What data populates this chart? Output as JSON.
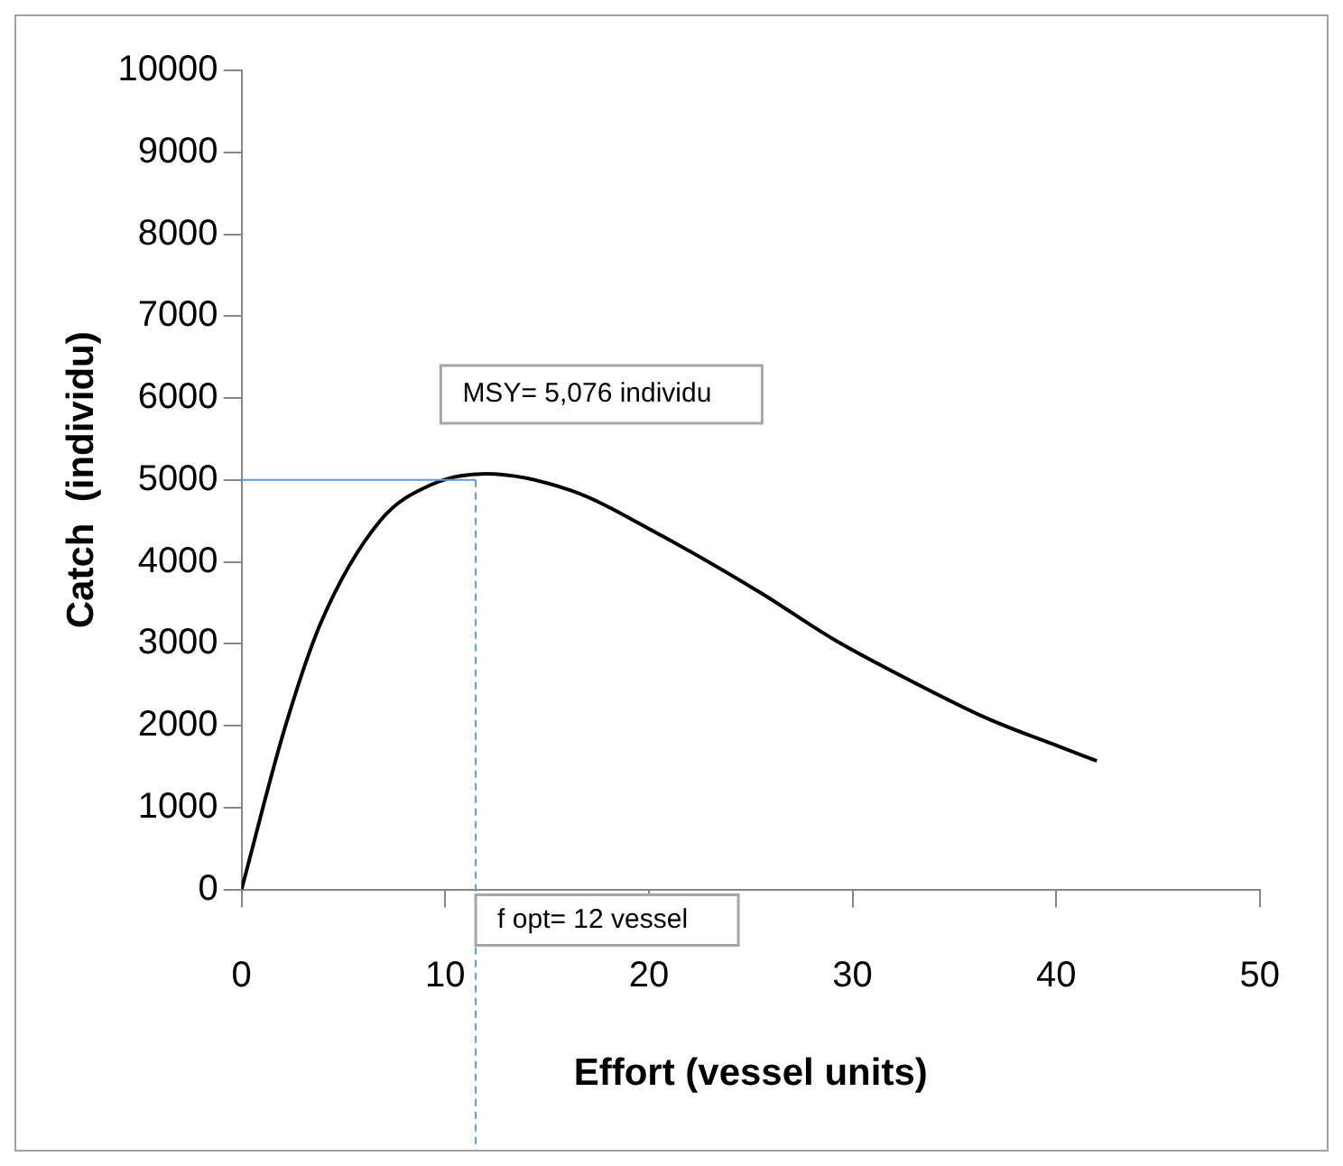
{
  "chart_data": {
    "type": "line",
    "xlabel": "Effort (vessel units)",
    "ylabel": "Catch  (individu)",
    "x": [
      0,
      2.1,
      3.9,
      6.8,
      9.3,
      12,
      16.2,
      20.4,
      25.5,
      29.1,
      33,
      36.6,
      40.2,
      42
    ],
    "series": [
      {
        "color": "#000000",
        "values": [
          0,
          1950,
          3260,
          4500,
          4940,
          5076,
          4870,
          4350,
          3620,
          3050,
          2530,
          2090,
          1740,
          1570
        ]
      }
    ],
    "xlim": [
      0,
      50
    ],
    "xticks": [
      0,
      10,
      20,
      30,
      40,
      50
    ],
    "ylim": [
      0,
      10000
    ],
    "yticks": [
      0,
      1000,
      2000,
      3000,
      4000,
      5000,
      6000,
      7000,
      8000,
      9000,
      10000
    ],
    "grid": false,
    "legend": false,
    "marker": "none",
    "line_style": "solid",
    "ref_lines": [
      {
        "axis": "y",
        "value": 5000,
        "color": "#5b9bd5",
        "line_style": "solid"
      },
      {
        "axis": "x",
        "value": 11.5,
        "color": "#5b9bd5",
        "line_style": "dashed"
      }
    ],
    "annotations": [
      {
        "text": "MSY= 5,076 individu",
        "x": 12,
        "y": 5076
      },
      "f opt= 12 vessel"
    ]
  }
}
